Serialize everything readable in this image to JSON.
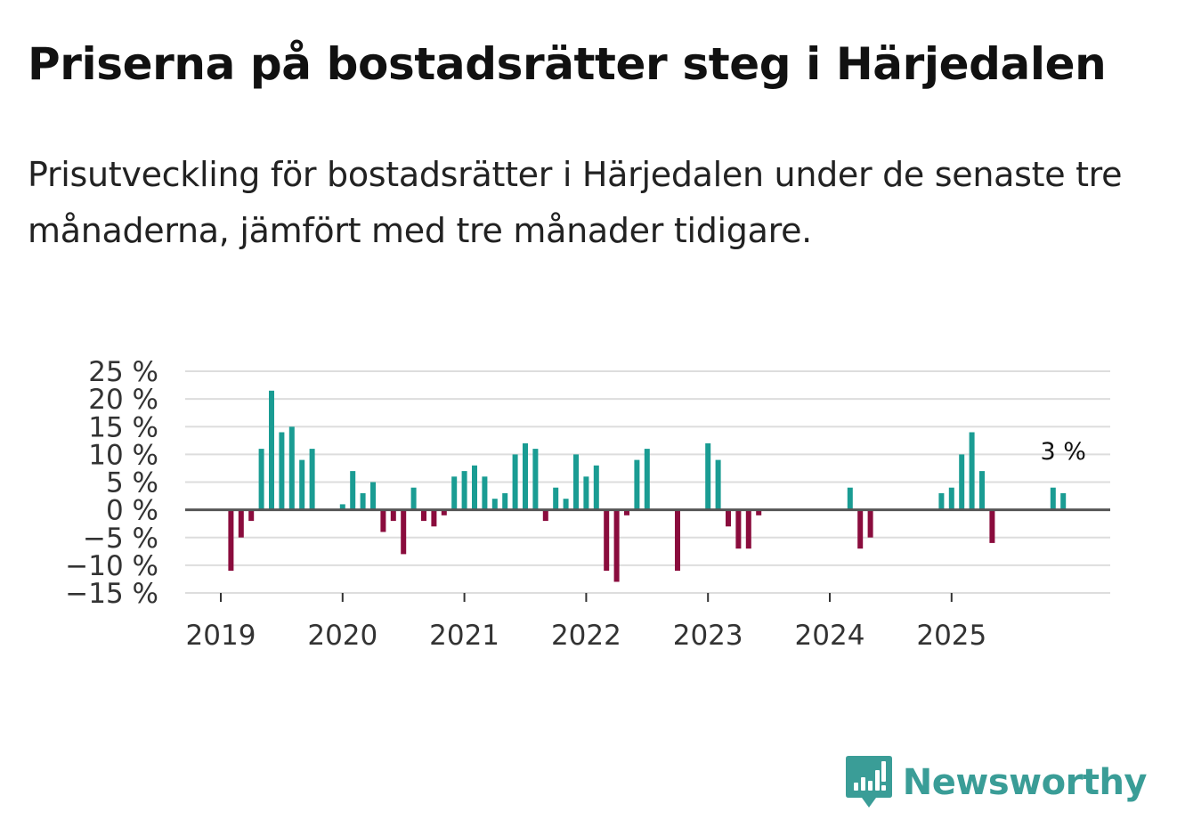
{
  "header": {
    "title": "Priserna på bostadsrätter steg i Härjedalen",
    "subtitle": "Prisutveckling för bostadsrätter i Härjedalen under de senaste tre månaderna, jämfört med tre månader tidigare."
  },
  "brand": {
    "name": "Newsworthy",
    "icon": "newsworthy-chart-bubble-icon",
    "color": "#3a9d97"
  },
  "colors": {
    "positive": "#1a9c93",
    "negative": "#8a0c3d",
    "gridline": "#dddddd",
    "zero_line": "#555555"
  },
  "chart_data": {
    "type": "bar",
    "title": "Priserna på bostadsrätter steg i Härjedalen",
    "xlabel": "",
    "ylabel": "",
    "unit": "%",
    "grid": true,
    "ylim": [
      -15,
      25
    ],
    "yticks": [
      25,
      20,
      15,
      10,
      5,
      0,
      -5,
      -10,
      -15
    ],
    "ytick_labels": [
      "25 %",
      "20 %",
      "15 %",
      "10 %",
      "5 %",
      "0 %",
      "−5 %",
      "−10 %",
      "−15 %"
    ],
    "xticks": [
      "2019",
      "2020",
      "2021",
      "2022",
      "2023",
      "2024",
      "2025"
    ],
    "x_range": [
      "2019-01",
      "2026-06"
    ],
    "annotation": {
      "label": "3 %",
      "series_point": "2025-12",
      "value": 3
    },
    "series": [
      {
        "name": "Prisutveckling",
        "points": [
          {
            "x": "2019-02",
            "y": -11
          },
          {
            "x": "2019-03",
            "y": -5
          },
          {
            "x": "2019-04",
            "y": -2
          },
          {
            "x": "2019-05",
            "y": 11
          },
          {
            "x": "2019-06",
            "y": 21.5
          },
          {
            "x": "2019-07",
            "y": 14
          },
          {
            "x": "2019-08",
            "y": 15
          },
          {
            "x": "2019-09",
            "y": 9
          },
          {
            "x": "2019-10",
            "y": 11
          },
          {
            "x": "2020-01",
            "y": 1
          },
          {
            "x": "2020-02",
            "y": 7
          },
          {
            "x": "2020-03",
            "y": 3
          },
          {
            "x": "2020-04",
            "y": 5
          },
          {
            "x": "2020-05",
            "y": -4
          },
          {
            "x": "2020-06",
            "y": -2
          },
          {
            "x": "2020-07",
            "y": -8
          },
          {
            "x": "2020-08",
            "y": 4
          },
          {
            "x": "2020-09",
            "y": -2
          },
          {
            "x": "2020-10",
            "y": -3
          },
          {
            "x": "2020-11",
            "y": -1
          },
          {
            "x": "2020-12",
            "y": 6
          },
          {
            "x": "2021-01",
            "y": 7
          },
          {
            "x": "2021-02",
            "y": 8
          },
          {
            "x": "2021-03",
            "y": 6
          },
          {
            "x": "2021-04",
            "y": 2
          },
          {
            "x": "2021-05",
            "y": 3
          },
          {
            "x": "2021-06",
            "y": 10
          },
          {
            "x": "2021-07",
            "y": 12
          },
          {
            "x": "2021-08",
            "y": 11
          },
          {
            "x": "2021-09",
            "y": -2
          },
          {
            "x": "2021-10",
            "y": 4
          },
          {
            "x": "2021-11",
            "y": 2
          },
          {
            "x": "2021-12",
            "y": 10
          },
          {
            "x": "2022-01",
            "y": 6
          },
          {
            "x": "2022-02",
            "y": 8
          },
          {
            "x": "2022-03",
            "y": -11
          },
          {
            "x": "2022-04",
            "y": -13
          },
          {
            "x": "2022-05",
            "y": -1
          },
          {
            "x": "2022-06",
            "y": 9
          },
          {
            "x": "2022-07",
            "y": 11
          },
          {
            "x": "2022-10",
            "y": -11
          },
          {
            "x": "2023-01",
            "y": 12
          },
          {
            "x": "2023-02",
            "y": 9
          },
          {
            "x": "2023-03",
            "y": -3
          },
          {
            "x": "2023-04",
            "y": -7
          },
          {
            "x": "2023-05",
            "y": -7
          },
          {
            "x": "2023-06",
            "y": -1
          },
          {
            "x": "2024-03",
            "y": 4
          },
          {
            "x": "2024-04",
            "y": -7
          },
          {
            "x": "2024-05",
            "y": -5
          },
          {
            "x": "2024-12",
            "y": 3
          },
          {
            "x": "2025-01",
            "y": 4
          },
          {
            "x": "2025-02",
            "y": 10
          },
          {
            "x": "2025-03",
            "y": 14
          },
          {
            "x": "2025-04",
            "y": 7
          },
          {
            "x": "2025-05",
            "y": -6
          },
          {
            "x": "2025-11",
            "y": 4
          },
          {
            "x": "2025-12",
            "y": 3
          }
        ]
      }
    ]
  }
}
